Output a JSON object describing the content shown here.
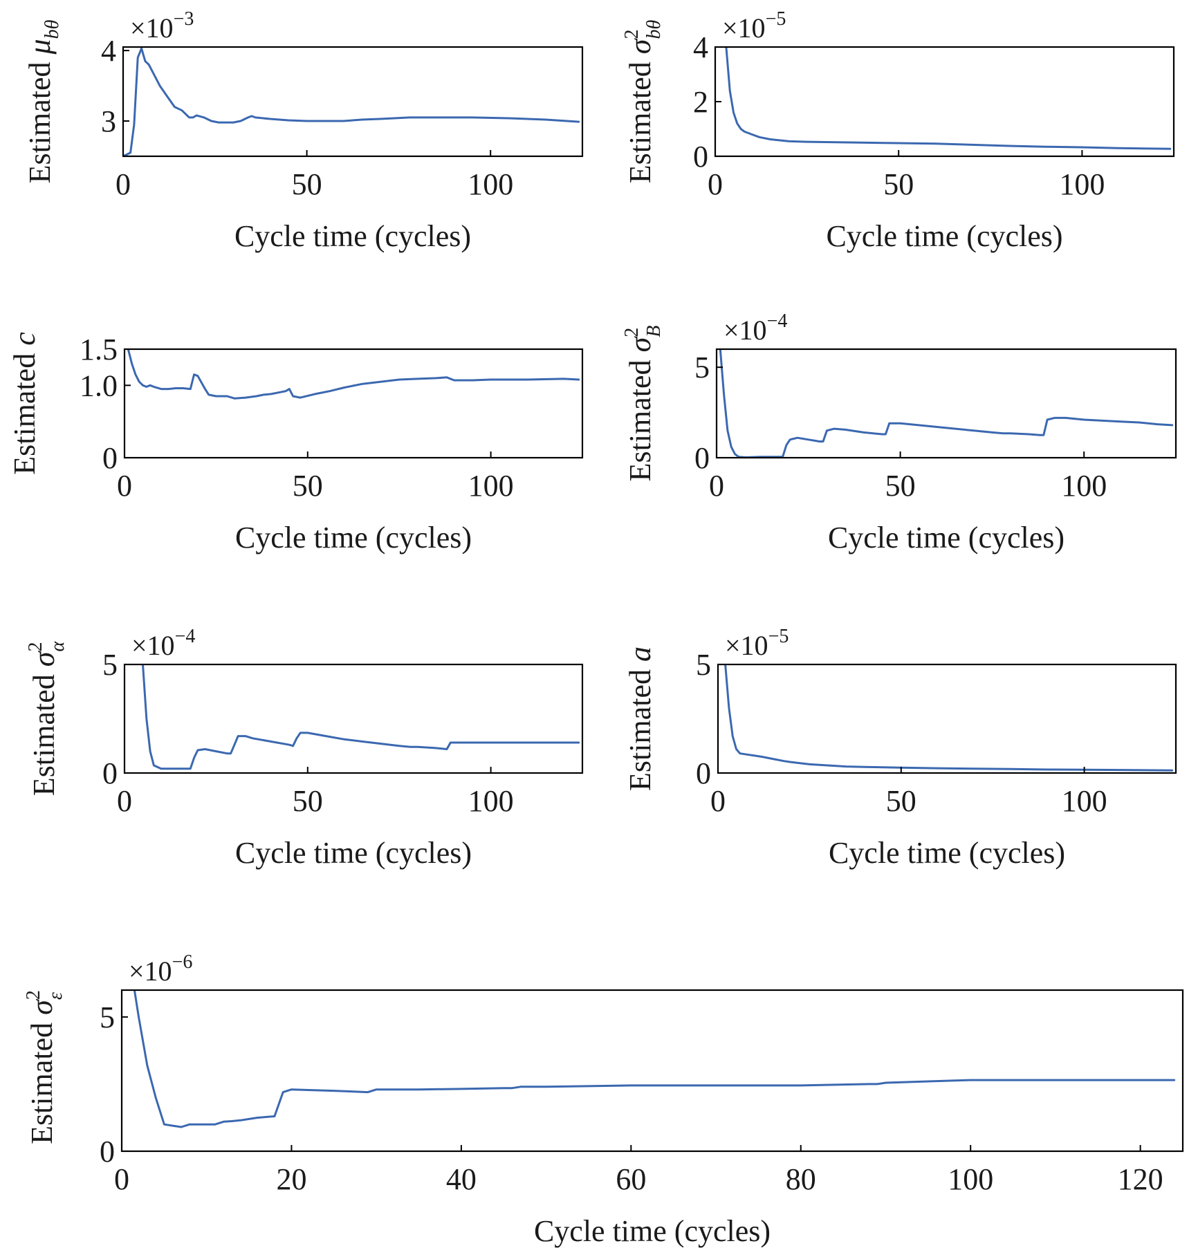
{
  "colors": {
    "series": "#3b68b0",
    "axes": "#000000",
    "text": "#1a1a1a"
  },
  "chart_data": [
    {
      "type": "line",
      "ylabel": "Estimated μ_{bθ}",
      "ylabel_main": "Estimated ",
      "ylabel_sym": "μ",
      "ylabel_sub": "bθ",
      "ylabel_sup": "",
      "xlabel": "Cycle time (cycles)",
      "multiplier": {
        "base": "×10",
        "exp": "−3"
      },
      "xlim": [
        0,
        125
      ],
      "ylim": [
        2.5,
        4.05
      ],
      "xticks": [
        0,
        50,
        100
      ],
      "yticks": [
        3,
        4
      ],
      "yticklabels": [
        "3",
        "4"
      ],
      "series": [
        {
          "x": [
            0,
            2,
            3,
            4,
            5,
            6,
            7,
            8,
            10,
            12,
            14,
            16,
            18,
            19,
            20,
            22,
            24,
            26,
            28,
            30,
            32,
            34,
            35,
            36,
            40,
            45,
            50,
            55,
            60,
            65,
            70,
            78,
            85,
            95,
            105,
            115,
            124
          ],
          "y": [
            2.5,
            2.55,
            2.95,
            3.9,
            4.03,
            3.85,
            3.8,
            3.7,
            3.5,
            3.35,
            3.2,
            3.15,
            3.05,
            3.05,
            3.08,
            3.05,
            3.0,
            2.98,
            2.98,
            2.98,
            3.0,
            3.05,
            3.07,
            3.05,
            3.03,
            3.01,
            3.0,
            3.0,
            3.0,
            3.02,
            3.03,
            3.05,
            3.05,
            3.05,
            3.04,
            3.02,
            2.99
          ]
        }
      ]
    },
    {
      "type": "line",
      "ylabel": "Estimated σ²_{bθ}",
      "ylabel_main": "Estimated ",
      "ylabel_sym": "σ",
      "ylabel_sub": "bθ",
      "ylabel_sup": "2",
      "xlabel": "Cycle time (cycles)",
      "multiplier": {
        "base": "×10",
        "exp": "−5"
      },
      "xlim": [
        0,
        125
      ],
      "ylim": [
        0,
        4
      ],
      "xticks": [
        0,
        50,
        100
      ],
      "yticks": [
        0,
        2,
        4
      ],
      "yticklabels": [
        "0",
        "2",
        "4"
      ],
      "series": [
        {
          "x": [
            3,
            4,
            5,
            6,
            7,
            8,
            10,
            12,
            15,
            20,
            25,
            30,
            40,
            50,
            60,
            70,
            80,
            90,
            100,
            110,
            124
          ],
          "y": [
            4.0,
            2.4,
            1.6,
            1.2,
            1.0,
            0.9,
            0.8,
            0.7,
            0.62,
            0.55,
            0.53,
            0.52,
            0.5,
            0.48,
            0.46,
            0.42,
            0.38,
            0.35,
            0.33,
            0.3,
            0.27
          ]
        }
      ]
    },
    {
      "type": "line",
      "ylabel": "Estimated c",
      "ylabel_main": "Estimated ",
      "ylabel_sym": "c",
      "ylabel_sub": "",
      "ylabel_sup": "",
      "xlabel": "Cycle time (cycles)",
      "multiplier": null,
      "xlim": [
        0,
        125
      ],
      "ylim": [
        0,
        1.5
      ],
      "xticks": [
        0,
        50,
        100
      ],
      "yticks": [
        0,
        1.0,
        1.5
      ],
      "yticklabels": [
        "0",
        "1.0",
        "1.5"
      ],
      "series": [
        {
          "x": [
            1,
            2,
            3,
            4,
            5,
            6,
            7,
            8,
            10,
            12,
            14,
            16,
            18,
            19,
            20,
            22,
            23,
            25,
            28,
            30,
            33,
            36,
            38,
            40,
            44,
            45,
            46,
            48,
            52,
            56,
            60,
            65,
            70,
            75,
            80,
            85,
            88,
            90,
            95,
            100,
            105,
            110,
            120,
            124
          ],
          "y": [
            1.5,
            1.3,
            1.15,
            1.05,
            1.0,
            0.98,
            1.0,
            0.98,
            0.95,
            0.95,
            0.96,
            0.96,
            0.95,
            1.15,
            1.13,
            0.95,
            0.87,
            0.85,
            0.85,
            0.82,
            0.83,
            0.85,
            0.87,
            0.88,
            0.92,
            0.95,
            0.85,
            0.83,
            0.88,
            0.92,
            0.97,
            1.02,
            1.05,
            1.08,
            1.09,
            1.1,
            1.11,
            1.07,
            1.07,
            1.08,
            1.08,
            1.08,
            1.09,
            1.08
          ]
        }
      ]
    },
    {
      "type": "line",
      "ylabel": "Estimated σ²_B",
      "ylabel_main": "Estimated ",
      "ylabel_sym": "σ",
      "ylabel_sub": "B",
      "ylabel_sup": "2",
      "xlabel": "Cycle time (cycles)",
      "multiplier": {
        "base": "×10",
        "exp": "−4"
      },
      "xlim": [
        0,
        125
      ],
      "ylim": [
        0,
        6
      ],
      "xticks": [
        0,
        50,
        100
      ],
      "yticks": [
        0,
        5
      ],
      "yticklabels": [
        "0",
        "5"
      ],
      "series": [
        {
          "x": [
            1,
            2,
            3,
            4,
            5,
            6,
            8,
            12,
            16,
            18,
            19,
            20,
            22,
            25,
            28,
            29,
            30,
            32,
            35,
            40,
            45,
            46,
            47,
            50,
            55,
            60,
            65,
            70,
            75,
            78,
            80,
            85,
            88,
            89,
            90,
            92,
            95,
            100,
            105,
            110,
            115,
            120,
            124
          ],
          "y": [
            6,
            3.5,
            1.5,
            0.6,
            0.2,
            0.05,
            0.02,
            0.05,
            0.05,
            0.05,
            0.7,
            1.0,
            1.1,
            1.0,
            0.9,
            0.9,
            1.5,
            1.6,
            1.55,
            1.4,
            1.3,
            1.3,
            1.9,
            1.9,
            1.8,
            1.7,
            1.6,
            1.5,
            1.4,
            1.35,
            1.35,
            1.3,
            1.25,
            1.25,
            2.1,
            2.2,
            2.2,
            2.1,
            2.05,
            2.0,
            1.95,
            1.85,
            1.8
          ]
        }
      ]
    },
    {
      "type": "line",
      "ylabel": "Estimated σ²_α",
      "ylabel_main": "Estimated ",
      "ylabel_sym": "σ",
      "ylabel_sub": "α",
      "ylabel_sup": "2",
      "xlabel": "Cycle time (cycles)",
      "multiplier": {
        "base": "×10",
        "exp": "−4"
      },
      "xlim": [
        0,
        125
      ],
      "ylim": [
        0,
        5
      ],
      "xticks": [
        0,
        50,
        100
      ],
      "yticks": [
        0,
        5
      ],
      "yticklabels": [
        "0",
        "5"
      ],
      "series": [
        {
          "x": [
            5,
            6,
            7,
            8,
            10,
            12,
            15,
            18,
            19,
            20,
            22,
            25,
            28,
            29,
            30,
            31,
            33,
            35,
            40,
            45,
            46,
            47,
            48,
            50,
            55,
            60,
            65,
            70,
            75,
            78,
            80,
            85,
            88,
            89,
            90,
            95,
            100,
            110,
            124
          ],
          "y": [
            5,
            2.5,
            1.0,
            0.35,
            0.2,
            0.2,
            0.2,
            0.2,
            0.7,
            1.05,
            1.1,
            1.0,
            0.9,
            0.9,
            1.3,
            1.7,
            1.7,
            1.6,
            1.45,
            1.3,
            1.25,
            1.6,
            1.85,
            1.85,
            1.7,
            1.55,
            1.45,
            1.35,
            1.25,
            1.2,
            1.2,
            1.15,
            1.1,
            1.4,
            1.4,
            1.4,
            1.4,
            1.4,
            1.4
          ]
        }
      ]
    },
    {
      "type": "line",
      "ylabel": "Estimated a",
      "ylabel_main": "Estimated ",
      "ylabel_sym": "a",
      "ylabel_sub": "",
      "ylabel_sup": "",
      "xlabel": "Cycle time (cycles)",
      "multiplier": {
        "base": "×10",
        "exp": "−5"
      },
      "xlim": [
        0,
        125
      ],
      "ylim": [
        0,
        5
      ],
      "xticks": [
        0,
        50,
        100
      ],
      "yticks": [
        0,
        5
      ],
      "yticklabels": [
        "0",
        "5"
      ],
      "series": [
        {
          "x": [
            2,
            3,
            4,
            5,
            6,
            8,
            10,
            12,
            15,
            18,
            20,
            25,
            30,
            35,
            40,
            50,
            60,
            70,
            80,
            90,
            100,
            110,
            124
          ],
          "y": [
            5,
            3.0,
            1.7,
            1.1,
            0.9,
            0.85,
            0.8,
            0.75,
            0.65,
            0.55,
            0.5,
            0.4,
            0.35,
            0.3,
            0.28,
            0.25,
            0.22,
            0.2,
            0.18,
            0.16,
            0.15,
            0.14,
            0.12
          ]
        }
      ]
    },
    {
      "type": "line",
      "ylabel": "Estimated σ²_ε",
      "ylabel_main": "Estimated ",
      "ylabel_sym": "σ",
      "ylabel_sub": "ε",
      "ylabel_sup": "2",
      "xlabel": "Cycle time (cycles)",
      "multiplier": {
        "base": "×10",
        "exp": "−6"
      },
      "xlim": [
        0,
        125
      ],
      "ylim": [
        0,
        6
      ],
      "xticks": [
        0,
        20,
        40,
        60,
        80,
        100,
        120
      ],
      "yticks": [
        0,
        5
      ],
      "yticklabels": [
        "0",
        "5"
      ],
      "series": [
        {
          "x": [
            1.5,
            2,
            3,
            4,
            5,
            6,
            7,
            8,
            10,
            11,
            12,
            13,
            14,
            15,
            16,
            18,
            19,
            20,
            25,
            29,
            30,
            35,
            40,
            45,
            46,
            47,
            50,
            60,
            70,
            80,
            88,
            89,
            90,
            95,
            100,
            110,
            120,
            124
          ],
          "y": [
            6,
            5.0,
            3.2,
            2.0,
            1.0,
            0.95,
            0.9,
            1.0,
            1.0,
            1.0,
            1.1,
            1.12,
            1.15,
            1.2,
            1.25,
            1.3,
            2.2,
            2.3,
            2.25,
            2.2,
            2.3,
            2.3,
            2.32,
            2.35,
            2.35,
            2.4,
            2.4,
            2.45,
            2.45,
            2.45,
            2.5,
            2.5,
            2.55,
            2.6,
            2.65,
            2.65,
            2.65,
            2.65
          ]
        }
      ]
    }
  ]
}
